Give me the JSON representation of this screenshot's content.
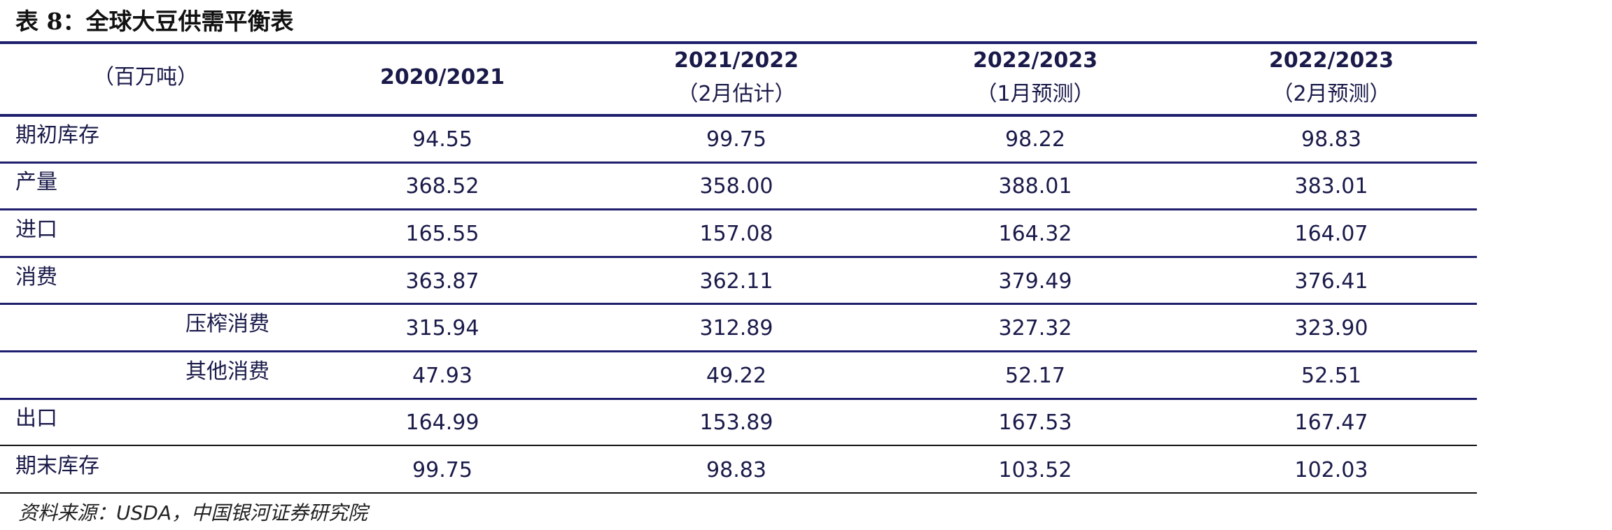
{
  "title": "表 8：全球大豆供需平衡表",
  "table": {
    "header": [
      [
        "（百万吨）"
      ],
      [
        "2020/2021"
      ],
      [
        "2021/2022",
        "（2月估计）"
      ],
      [
        "2022/2023",
        "（1月预测）"
      ],
      [
        "2022/2023",
        "（2月预测）"
      ]
    ],
    "rows": [
      [
        "期初库存",
        "94.55",
        "99.75",
        "98.22",
        "98.83"
      ],
      [
        "产量",
        "368.52",
        "358.00",
        "388.01",
        "383.01"
      ],
      [
        "进口",
        "165.55",
        "157.08",
        "164.32",
        "164.07"
      ],
      [
        "消费",
        "363.87",
        "362.11",
        "379.49",
        "376.41"
      ],
      [
        "压榨消费",
        "315.94",
        "312.89",
        "327.32",
        "323.90"
      ],
      [
        "其他消费",
        "47.93",
        "49.22",
        "52.17",
        "52.51"
      ],
      [
        "出口",
        "164.99",
        "153.89",
        "167.53",
        "167.47"
      ],
      [
        "期末库存",
        "99.75",
        "98.83",
        "103.52",
        "102.03"
      ]
    ]
  },
  "source": "资料来源：USDA，中国银河证券研究院"
}
